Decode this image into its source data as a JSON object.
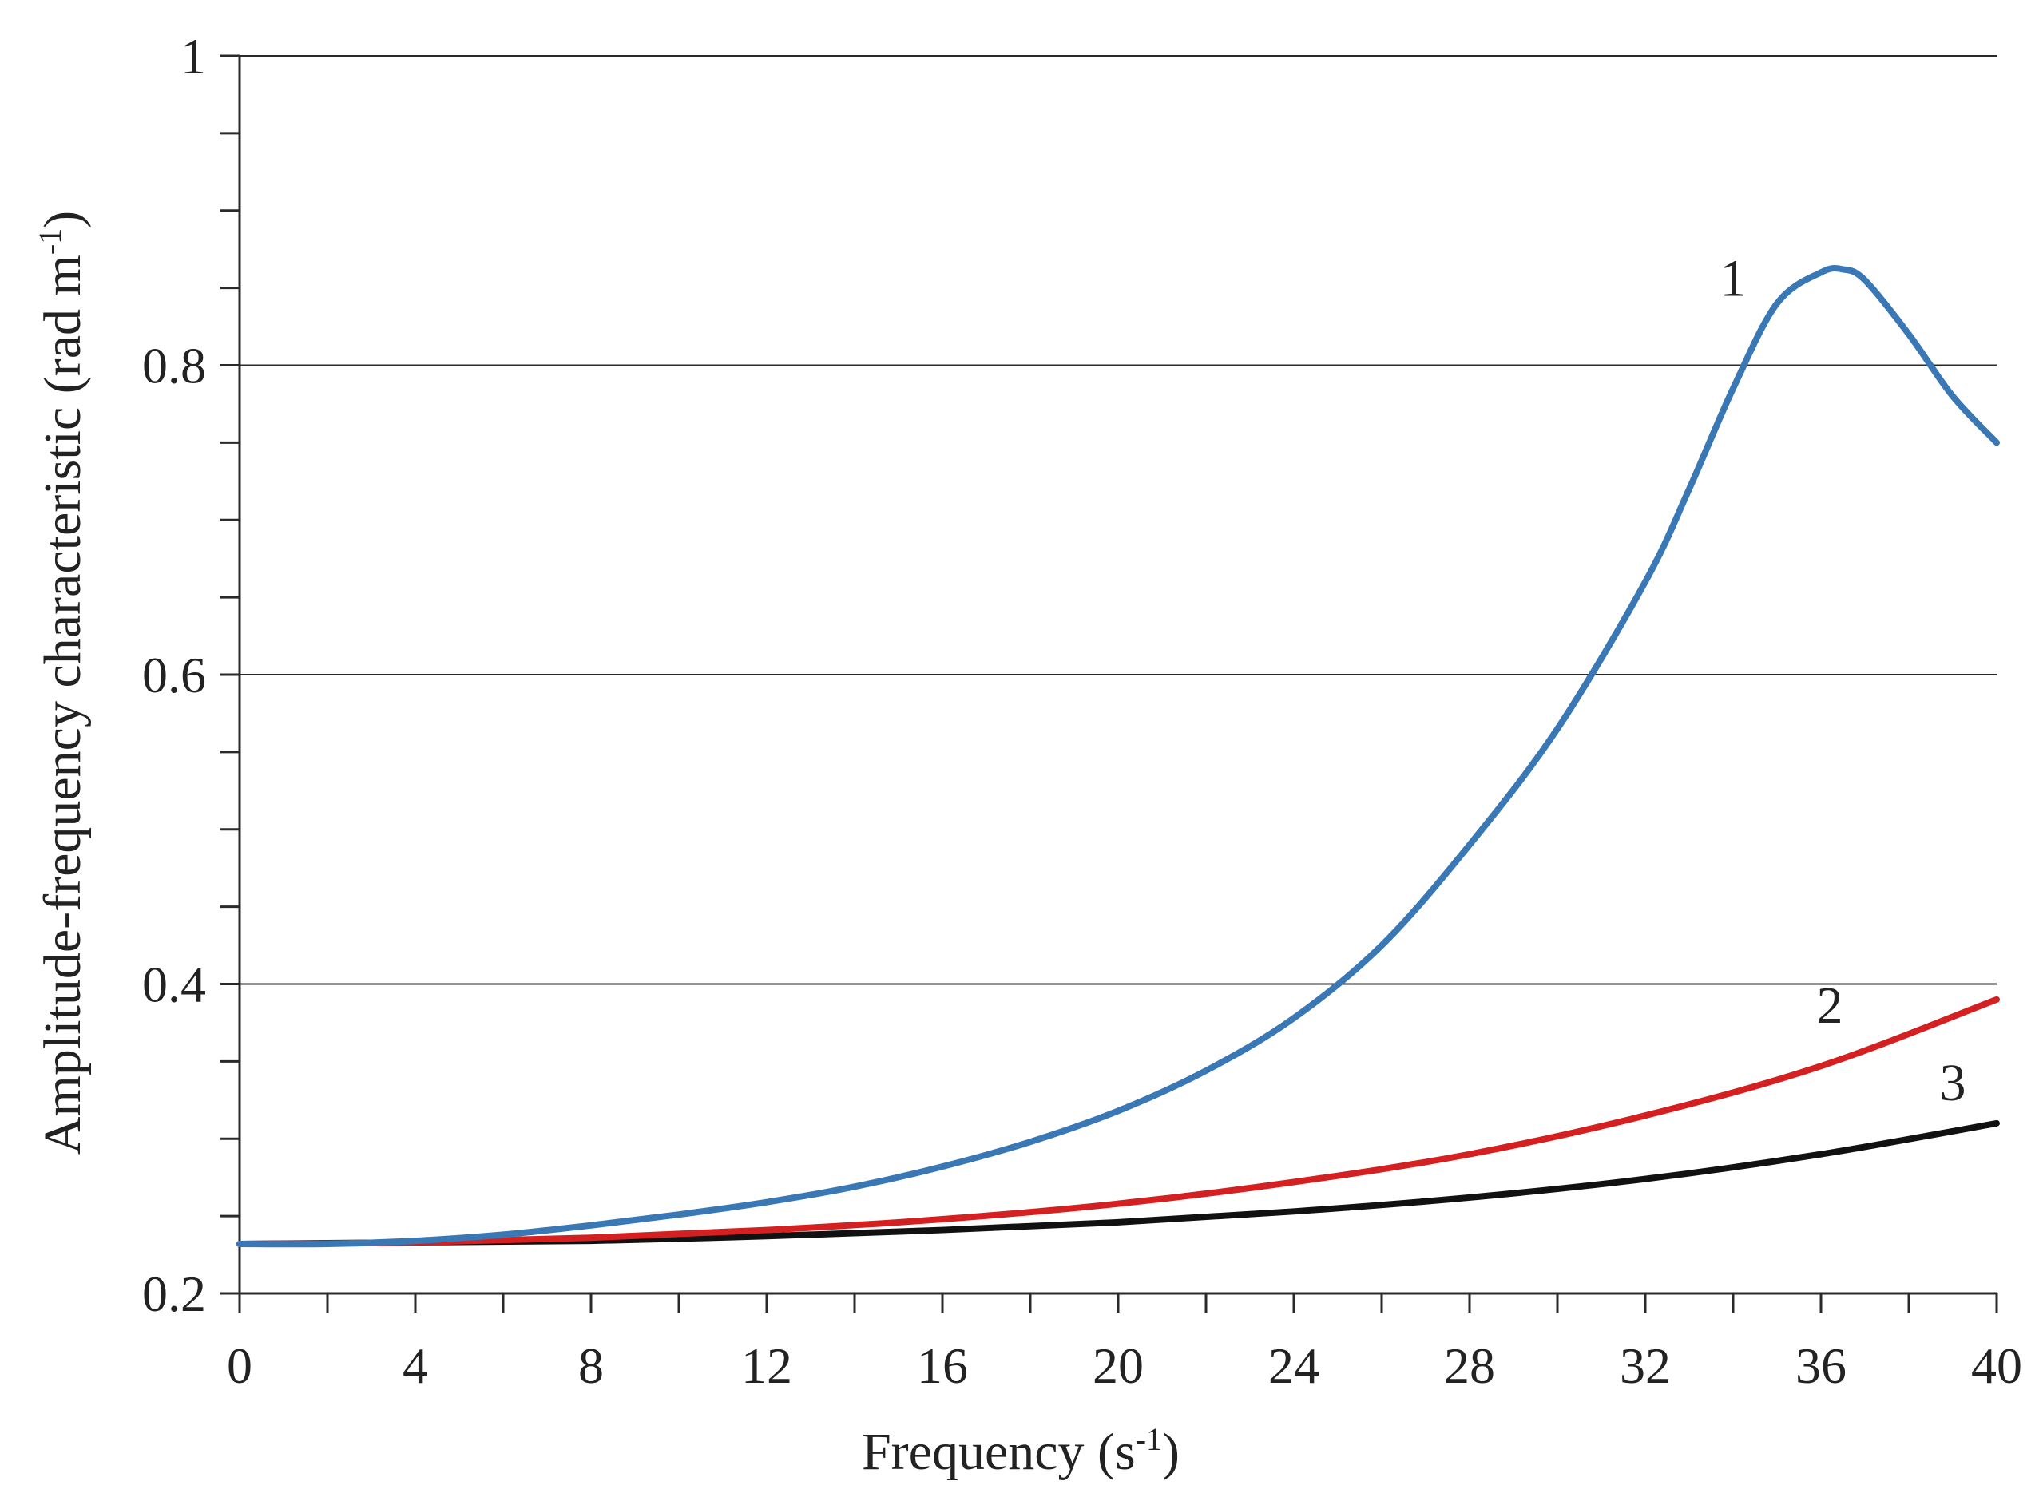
{
  "chart_data": {
    "type": "line",
    "xlabel": "Frequency (s-1)",
    "xlabel_main": "Frequency (s",
    "xlabel_sup": "-1",
    "xlabel_close": ")",
    "ylabel": "Amplitude-frequency characteristic (rad m-1)",
    "ylabel_main": "Amplitude-frequency characteristic (rad m",
    "ylabel_sup": "-1",
    "ylabel_close": ")",
    "xlim": [
      0,
      40
    ],
    "ylim": [
      0.2,
      1.0
    ],
    "x_ticks": [
      0,
      4,
      8,
      12,
      16,
      20,
      24,
      28,
      32,
      36,
      40
    ],
    "x_tick_labels": [
      "0",
      "4",
      "8",
      "12",
      "16",
      "20",
      "24",
      "28",
      "32",
      "36",
      "40"
    ],
    "x_minor_step": 2,
    "y_ticks": [
      0.2,
      0.4,
      0.6,
      0.8,
      1.0
    ],
    "y_tick_labels": [
      "0.2",
      "0.4",
      "0.6",
      "0.8",
      "1"
    ],
    "y_minor_step": 0.05,
    "y_gridlines": [
      0.4,
      0.6,
      0.8,
      1.0
    ],
    "grid": "horizontal",
    "legend": "none",
    "series": [
      {
        "label": "1",
        "label_position": [
          34,
          0.845
        ],
        "color": "#3a78b5",
        "x": [
          0,
          2,
          4,
          6,
          8,
          10,
          12,
          14,
          16,
          18,
          20,
          22,
          24,
          26,
          28,
          30,
          32,
          33,
          34,
          35,
          36,
          36.5,
          37,
          38,
          39,
          40
        ],
        "y": [
          0.232,
          0.232,
          0.234,
          0.238,
          0.244,
          0.251,
          0.259,
          0.269,
          0.282,
          0.298,
          0.318,
          0.344,
          0.378,
          0.425,
          0.49,
          0.565,
          0.66,
          0.72,
          0.785,
          0.84,
          0.86,
          0.862,
          0.855,
          0.82,
          0.78,
          0.75
        ]
      },
      {
        "label": "2",
        "label_position": [
          36.2,
          0.375
        ],
        "color": "#d42020",
        "x": [
          0,
          4,
          8,
          12,
          16,
          20,
          24,
          28,
          32,
          36,
          40
        ],
        "y": [
          0.232,
          0.233,
          0.236,
          0.241,
          0.248,
          0.258,
          0.272,
          0.29,
          0.315,
          0.347,
          0.39
        ]
      },
      {
        "label": "3",
        "label_position": [
          39,
          0.325
        ],
        "color": "#111111",
        "x": [
          0,
          4,
          8,
          12,
          16,
          20,
          24,
          28,
          32,
          36,
          40
        ],
        "y": [
          0.232,
          0.233,
          0.234,
          0.237,
          0.241,
          0.246,
          0.253,
          0.262,
          0.274,
          0.29,
          0.31
        ]
      }
    ]
  }
}
